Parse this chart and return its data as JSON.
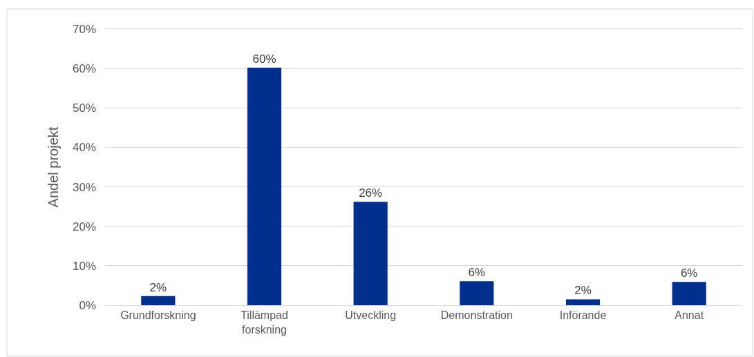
{
  "chart_data": {
    "type": "bar",
    "ylabel": "Andel projekt",
    "categories": [
      "Grundforskning",
      "Tillämpad forskning",
      "Utveckling",
      "Demonstration",
      "Införande",
      "Annat"
    ],
    "series": [
      {
        "color": "#002f8e",
        "values": [
          2.3,
          60.2,
          26.2,
          6.1,
          1.5,
          5.9
        ],
        "value_labels": [
          "2%",
          "60%",
          "26%",
          "6%",
          "2%",
          "6%"
        ]
      }
    ],
    "ylim": [
      0,
      70
    ],
    "yticks": [
      {
        "value": 0,
        "label": "0%"
      },
      {
        "value": 10,
        "label": "10%"
      },
      {
        "value": 20,
        "label": "20%"
      },
      {
        "value": 30,
        "label": "30%"
      },
      {
        "value": 40,
        "label": "40%"
      },
      {
        "value": 50,
        "label": "50%"
      },
      {
        "value": 60,
        "label": "60%"
      },
      {
        "value": 70,
        "label": "70%"
      }
    ],
    "grid": "y"
  }
}
